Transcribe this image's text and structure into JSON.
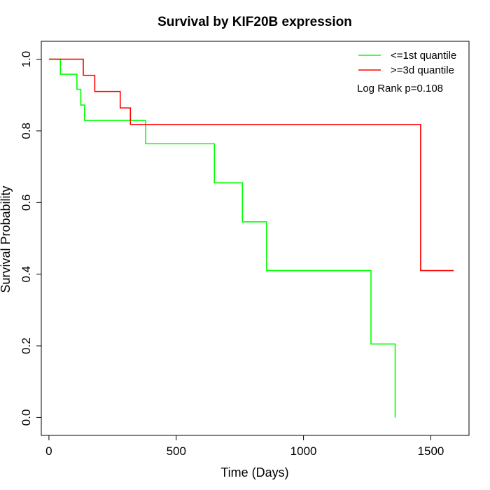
{
  "chart_data": {
    "type": "line",
    "step": true,
    "title": "Survival by KIF20B expression",
    "xlabel": "Time (Days)",
    "ylabel": "Survival Probability",
    "xlim": [
      -30,
      1650
    ],
    "ylim": [
      -0.05,
      1.05
    ],
    "x_ticks": [
      0,
      500,
      1000,
      1500
    ],
    "y_ticks": [
      0.0,
      0.2,
      0.4,
      0.6,
      0.8,
      1.0
    ],
    "y_tick_labels": [
      "0.0",
      "0.2",
      "0.4",
      "0.6",
      "0.8",
      "1.0"
    ],
    "grid": false,
    "legend_position": "top-right",
    "annotation": "Log Rank p=0.108",
    "series": [
      {
        "name": "<=1st quantile",
        "color": "#00ff00",
        "x": [
          0,
          45,
          110,
          125,
          140,
          380,
          650,
          760,
          855,
          1265,
          1360,
          1360
        ],
        "y": [
          1.0,
          0.958,
          0.916,
          0.872,
          0.829,
          0.764,
          0.655,
          0.546,
          0.41,
          0.205,
          0.205,
          0.0
        ]
      },
      {
        "name": ">=3d quantile",
        "color": "#ff0000",
        "x": [
          0,
          135,
          180,
          280,
          320,
          1460,
          1590
        ],
        "y": [
          1.0,
          0.955,
          0.91,
          0.864,
          0.818,
          0.41,
          0.41
        ]
      }
    ]
  }
}
